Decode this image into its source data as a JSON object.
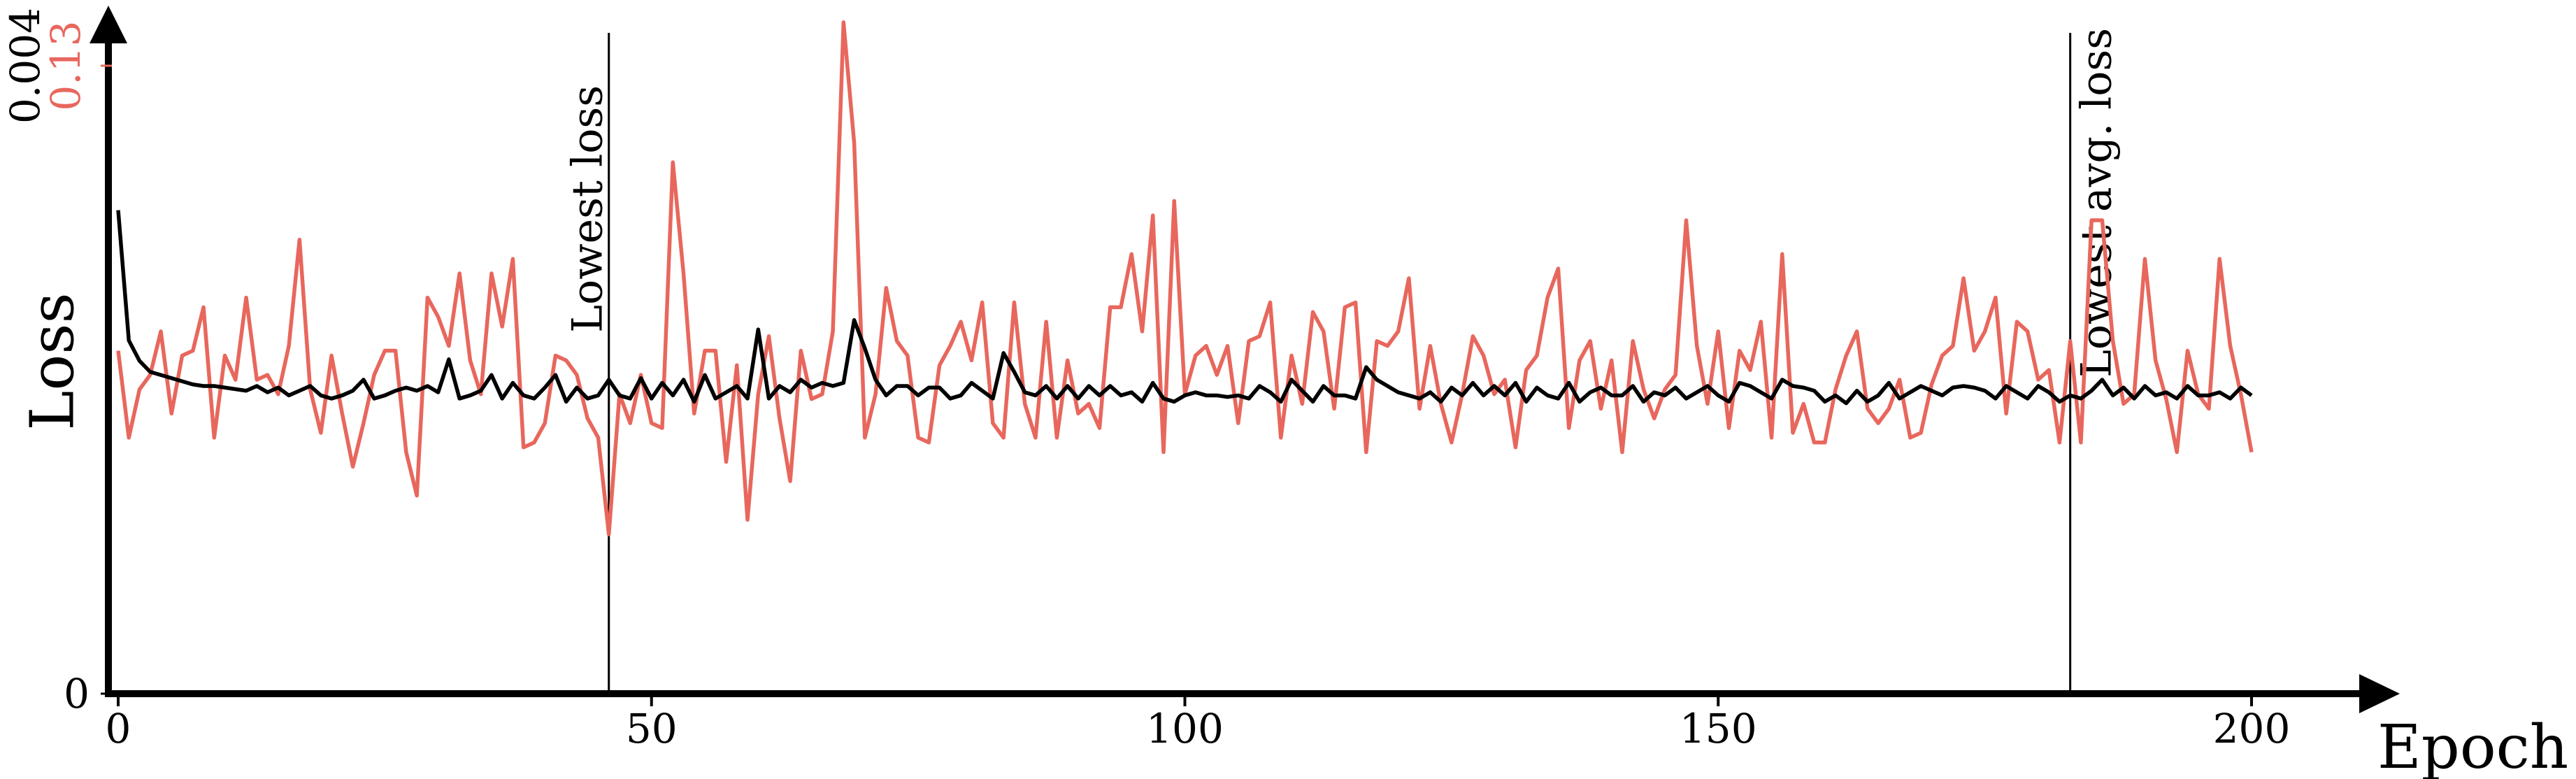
{
  "chart_data": {
    "type": "line",
    "xlabel": "Epoch",
    "ylabel": "Loss",
    "x": [
      0,
      1,
      2,
      3,
      4,
      5,
      6,
      7,
      8,
      9,
      10,
      11,
      12,
      13,
      14,
      15,
      16,
      17,
      18,
      19,
      20,
      21,
      22,
      23,
      24,
      25,
      26,
      27,
      28,
      29,
      30,
      31,
      32,
      33,
      34,
      35,
      36,
      37,
      38,
      39,
      40,
      41,
      42,
      43,
      44,
      45,
      46,
      47,
      48,
      49,
      50,
      51,
      52,
      53,
      54,
      55,
      56,
      57,
      58,
      59,
      60,
      61,
      62,
      63,
      64,
      65,
      66,
      67,
      68,
      69,
      70,
      71,
      72,
      73,
      74,
      75,
      76,
      77,
      78,
      79,
      80,
      81,
      82,
      83,
      84,
      85,
      86,
      87,
      88,
      89,
      90,
      91,
      92,
      93,
      94,
      95,
      96,
      97,
      98,
      99,
      100,
      101,
      102,
      103,
      104,
      105,
      106,
      107,
      108,
      109,
      110,
      111,
      112,
      113,
      114,
      115,
      116,
      117,
      118,
      119,
      120,
      121,
      122,
      123,
      124,
      125,
      126,
      127,
      128,
      129,
      130,
      131,
      132,
      133,
      134,
      135,
      136,
      137,
      138,
      139,
      140,
      141,
      142,
      143,
      144,
      145,
      146,
      147,
      148,
      149,
      150,
      151,
      152,
      153,
      154,
      155,
      156,
      157,
      158,
      159,
      160,
      161,
      162,
      163,
      164,
      165,
      166,
      167,
      168,
      169,
      170,
      171,
      172,
      173,
      174,
      175,
      176,
      177,
      178,
      179,
      180,
      181,
      182,
      183,
      184,
      185,
      186,
      187,
      188,
      189,
      190,
      191,
      192,
      193,
      194,
      195,
      196,
      197,
      198,
      199,
      200
    ],
    "series": [
      {
        "color": "#e8675d",
        "axis": "y2",
        "values": [
          0.071,
          0.053,
          0.063,
          0.066,
          0.075,
          0.058,
          0.07,
          0.071,
          0.08,
          0.053,
          0.07,
          0.065,
          0.082,
          0.065,
          0.066,
          0.062,
          0.072,
          0.094,
          0.063,
          0.054,
          0.07,
          0.058,
          0.047,
          0.056,
          0.066,
          0.071,
          0.071,
          0.05,
          0.041,
          0.082,
          0.078,
          0.072,
          0.087,
          0.069,
          0.062,
          0.087,
          0.076,
          0.09,
          0.051,
          0.052,
          0.056,
          0.07,
          0.069,
          0.066,
          0.057,
          0.053,
          0.033,
          0.062,
          0.056,
          0.066,
          0.056,
          0.055,
          0.11,
          0.087,
          0.058,
          0.071,
          0.071,
          0.048,
          0.068,
          0.036,
          0.062,
          0.074,
          0.057,
          0.044,
          0.071,
          0.061,
          0.062,
          0.075,
          0.139,
          0.114,
          0.053,
          0.062,
          0.084,
          0.073,
          0.07,
          0.053,
          0.052,
          0.068,
          0.072,
          0.077,
          0.069,
          0.081,
          0.056,
          0.053,
          0.081,
          0.06,
          0.053,
          0.077,
          0.053,
          0.069,
          0.058,
          0.06,
          0.055,
          0.08,
          0.08,
          0.091,
          0.075,
          0.099,
          0.05,
          0.102,
          0.062,
          0.07,
          0.072,
          0.066,
          0.072,
          0.056,
          0.073,
          0.074,
          0.081,
          0.053,
          0.07,
          0.06,
          0.079,
          0.075,
          0.059,
          0.08,
          0.081,
          0.05,
          0.073,
          0.072,
          0.075,
          0.086,
          0.059,
          0.072,
          0.06,
          0.052,
          0.062,
          0.074,
          0.07,
          0.062,
          0.065,
          0.051,
          0.067,
          0.07,
          0.082,
          0.088,
          0.055,
          0.069,
          0.073,
          0.059,
          0.069,
          0.05,
          0.073,
          0.063,
          0.057,
          0.063,
          0.066,
          0.098,
          0.072,
          0.06,
          0.075,
          0.055,
          0.071,
          0.067,
          0.077,
          0.053,
          0.091,
          0.054,
          0.06,
          0.052,
          0.052,
          0.063,
          0.07,
          0.075,
          0.059,
          0.056,
          0.059,
          0.065,
          0.053,
          0.054,
          0.064,
          0.07,
          0.072,
          0.086,
          0.071,
          0.075,
          0.082,
          0.058,
          0.077,
          0.075,
          0.065,
          0.067,
          0.052,
          0.073,
          0.052,
          0.098,
          0.098,
          0.073,
          0.06,
          0.062,
          0.09,
          0.069,
          0.061,
          0.05,
          0.071,
          0.062,
          0.059,
          0.09,
          0.072,
          0.062,
          0.05
        ]
      },
      {
        "color": "#000000",
        "values": [
          0.00308,
          0.00225,
          0.00212,
          0.00205,
          0.00203,
          0.00201,
          0.00199,
          0.00197,
          0.00196,
          0.00196,
          0.00195,
          0.00194,
          0.00193,
          0.00196,
          0.00192,
          0.00195,
          0.0019,
          0.00193,
          0.00196,
          0.0019,
          0.00188,
          0.0019,
          0.00193,
          0.002,
          0.00188,
          0.0019,
          0.00193,
          0.00195,
          0.00193,
          0.00196,
          0.00192,
          0.00213,
          0.00188,
          0.0019,
          0.00193,
          0.00203,
          0.00188,
          0.00198,
          0.0019,
          0.00188,
          0.00195,
          0.00203,
          0.00186,
          0.00195,
          0.00188,
          0.0019,
          0.002,
          0.0019,
          0.00188,
          0.00201,
          0.00188,
          0.00198,
          0.0019,
          0.002,
          0.00186,
          0.00203,
          0.00188,
          0.00192,
          0.00196,
          0.00188,
          0.00232,
          0.00188,
          0.00196,
          0.00192,
          0.002,
          0.00195,
          0.00198,
          0.00196,
          0.00198,
          0.00238,
          0.0022,
          0.002,
          0.0019,
          0.00196,
          0.00196,
          0.0019,
          0.00195,
          0.00195,
          0.00188,
          0.0019,
          0.00198,
          0.00193,
          0.00188,
          0.00217,
          0.00205,
          0.00192,
          0.0019,
          0.00196,
          0.00188,
          0.00196,
          0.00188,
          0.00196,
          0.0019,
          0.00196,
          0.0019,
          0.00192,
          0.00186,
          0.00198,
          0.00188,
          0.00186,
          0.0019,
          0.00192,
          0.0019,
          0.0019,
          0.00189,
          0.0019,
          0.00188,
          0.00196,
          0.00192,
          0.00186,
          0.002,
          0.00193,
          0.00186,
          0.00196,
          0.0019,
          0.0019,
          0.00188,
          0.00208,
          0.002,
          0.00196,
          0.00192,
          0.0019,
          0.00188,
          0.00192,
          0.00186,
          0.00195,
          0.0019,
          0.00198,
          0.0019,
          0.00196,
          0.0019,
          0.00198,
          0.00186,
          0.00195,
          0.0019,
          0.00188,
          0.00198,
          0.00186,
          0.00192,
          0.00195,
          0.0019,
          0.0019,
          0.00196,
          0.00186,
          0.00192,
          0.0019,
          0.00195,
          0.00188,
          0.00192,
          0.00196,
          0.0019,
          0.00186,
          0.00198,
          0.00196,
          0.00192,
          0.00188,
          0.002,
          0.00196,
          0.00195,
          0.00193,
          0.00186,
          0.0019,
          0.00185,
          0.00193,
          0.00186,
          0.0019,
          0.00198,
          0.00188,
          0.00192,
          0.00196,
          0.00193,
          0.0019,
          0.00195,
          0.00196,
          0.00195,
          0.00193,
          0.00188,
          0.00196,
          0.00192,
          0.00188,
          0.00196,
          0.00192,
          0.00186,
          0.0019,
          0.00188,
          0.00193,
          0.002,
          0.0019,
          0.00195,
          0.00188,
          0.00196,
          0.0019,
          0.00192,
          0.00188,
          0.00196,
          0.0019,
          0.0019,
          0.00192,
          0.00188,
          0.00195,
          0.0019
        ]
      }
    ],
    "annotations": [
      {
        "x": 46,
        "label": "Lowest loss"
      },
      {
        "x": 183,
        "label": "Lowest avg. loss"
      }
    ],
    "xlim": [
      0,
      200
    ],
    "xticks": [
      0,
      50,
      100,
      150,
      200
    ],
    "ylim": [
      0,
      0.004
    ],
    "yticks": [
      0,
      0.004
    ],
    "y2lim": [
      0,
      0.13
    ],
    "y2ticks": [
      0.13
    ],
    "y2_color": "#e8675d",
    "grid": false
  }
}
